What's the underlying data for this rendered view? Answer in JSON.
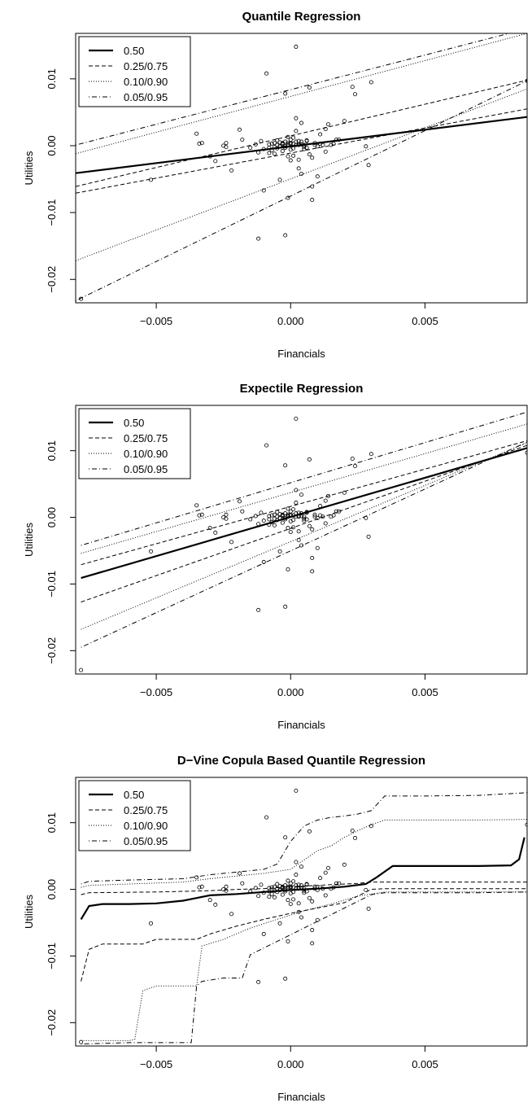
{
  "chart_data": [
    {
      "type": "scatter",
      "title": "Quantile Regression",
      "xlabel": "Financials",
      "ylabel": "Utilities",
      "xlim": [
        -0.008,
        0.0088
      ],
      "ylim": [
        -0.0235,
        0.0168
      ],
      "x_ticks": [
        -0.005,
        0.0,
        0.005
      ],
      "x_tick_labels": [
        "−0.005",
        "0.000",
        "0.005"
      ],
      "y_ticks": [
        -0.02,
        -0.01,
        0.0,
        0.01
      ],
      "y_tick_labels": [
        "−0.02",
        "−0.01",
        "0.00",
        "0.01"
      ],
      "legend": {
        "position": "top-left",
        "entries": [
          {
            "label": "0.50",
            "style": "solid"
          },
          {
            "label": "0.25/0.75",
            "style": "dashed"
          },
          {
            "label": "0.10/0.90",
            "style": "dotted"
          },
          {
            "label": "0.05/0.95",
            "style": "dotdash"
          }
        ]
      },
      "series": [
        {
          "quantile": 0.5,
          "style": "solid",
          "x": [
            -0.008,
            0.0088
          ],
          "y": [
            -0.0041,
            0.0043
          ]
        },
        {
          "quantile": 0.25,
          "style": "dashed",
          "x": [
            -0.008,
            0.0088
          ],
          "y": [
            -0.0071,
            0.0055
          ]
        },
        {
          "quantile": 0.75,
          "style": "dashed",
          "x": [
            -0.008,
            0.0088
          ],
          "y": [
            -0.0061,
            0.0098
          ]
        },
        {
          "quantile": 0.1,
          "style": "dotted",
          "x": [
            -0.008,
            0.0088
          ],
          "y": [
            -0.0172,
            0.0085
          ]
        },
        {
          "quantile": 0.9,
          "style": "dotted",
          "x": [
            -0.008,
            0.0088
          ],
          "y": [
            -0.0012,
            0.0168
          ]
        },
        {
          "quantile": 0.05,
          "style": "dotdash",
          "x": [
            -0.008,
            0.0088
          ],
          "y": [
            -0.0232,
            0.0097
          ]
        },
        {
          "quantile": 0.95,
          "style": "dotdash",
          "x": [
            -0.008,
            0.0088
          ],
          "y": [
            0.0001,
            0.0175
          ]
        }
      ]
    },
    {
      "type": "scatter",
      "title": "Expectile Regression",
      "xlabel": "Financials",
      "ylabel": "Utilities",
      "xlim": [
        -0.008,
        0.0088
      ],
      "ylim": [
        -0.0235,
        0.0168
      ],
      "x_ticks": [
        -0.005,
        0.0,
        0.005
      ],
      "x_tick_labels": [
        "−0.005",
        "0.000",
        "0.005"
      ],
      "y_ticks": [
        -0.02,
        -0.01,
        0.0,
        0.01
      ],
      "y_tick_labels": [
        "−0.02",
        "−0.01",
        "0.00",
        "0.01"
      ],
      "legend": {
        "position": "top-left",
        "entries": [
          {
            "label": "0.50",
            "style": "solid"
          },
          {
            "label": "0.25/0.75",
            "style": "dashed"
          },
          {
            "label": "0.10/0.90",
            "style": "dotted"
          },
          {
            "label": "0.05/0.95",
            "style": "dotdash"
          }
        ]
      },
      "series": [
        {
          "quantile": 0.5,
          "style": "solid",
          "x": [
            -0.0078,
            0.0088
          ],
          "y": [
            -0.0091,
            0.0104
          ]
        },
        {
          "quantile": 0.25,
          "style": "dashed",
          "x": [
            -0.0078,
            0.0088
          ],
          "y": [
            -0.0127,
            0.0108
          ]
        },
        {
          "quantile": 0.75,
          "style": "dashed",
          "x": [
            -0.0078,
            0.0088
          ],
          "y": [
            -0.0071,
            0.0115
          ]
        },
        {
          "quantile": 0.1,
          "style": "dotted",
          "x": [
            -0.0078,
            0.0088
          ],
          "y": [
            -0.0168,
            0.0112
          ]
        },
        {
          "quantile": 0.9,
          "style": "dotted",
          "x": [
            -0.0078,
            0.0088
          ],
          "y": [
            -0.0054,
            0.014
          ]
        },
        {
          "quantile": 0.05,
          "style": "dotdash",
          "x": [
            -0.0078,
            0.0088
          ],
          "y": [
            -0.0195,
            0.0113
          ]
        },
        {
          "quantile": 0.95,
          "style": "dotdash",
          "x": [
            -0.0078,
            0.0088
          ],
          "y": [
            -0.0042,
            0.0158
          ]
        }
      ]
    },
    {
      "type": "scatter",
      "title": "D−Vine Copula Based Quantile Regression",
      "xlabel": "Financials",
      "ylabel": "Utilities",
      "xlim": [
        -0.008,
        0.0088
      ],
      "ylim": [
        -0.0235,
        0.0168
      ],
      "x_ticks": [
        -0.005,
        0.0,
        0.005
      ],
      "x_tick_labels": [
        "−0.005",
        "0.000",
        "0.005"
      ],
      "y_ticks": [
        -0.02,
        -0.01,
        0.0,
        0.01
      ],
      "y_tick_labels": [
        "−0.02",
        "−0.01",
        "0.00",
        "0.01"
      ],
      "legend": {
        "position": "top-left",
        "entries": [
          {
            "label": "0.50",
            "style": "solid"
          },
          {
            "label": "0.25/0.75",
            "style": "dashed"
          },
          {
            "label": "0.10/0.90",
            "style": "dotted"
          },
          {
            "label": "0.05/0.95",
            "style": "dotdash"
          }
        ]
      },
      "series": [
        {
          "quantile": 0.5,
          "style": "solid",
          "x": [
            -0.0078,
            -0.0075,
            -0.007,
            -0.006,
            -0.005,
            -0.004,
            -0.0035,
            -0.003,
            -0.002,
            -0.001,
            0.0,
            0.001,
            0.002,
            0.0028,
            0.0032,
            0.0038,
            0.005,
            0.006,
            0.007,
            0.0082,
            0.0085,
            0.0087
          ],
          "y": [
            -0.0045,
            -0.0025,
            -0.0022,
            -0.0022,
            -0.0021,
            -0.0017,
            -0.0013,
            -0.0009,
            -0.0007,
            -0.0004,
            -0.0001,
            0.0001,
            0.0004,
            0.0008,
            0.0018,
            0.0035,
            0.0035,
            0.0035,
            0.0035,
            0.0036,
            0.0045,
            0.0078
          ]
        },
        {
          "quantile": 0.25,
          "style": "dashed",
          "x": [
            -0.0078,
            -0.0075,
            -0.007,
            -0.006,
            -0.0055,
            -0.005,
            -0.0035,
            -0.003,
            -0.002,
            -0.001,
            0.0,
            0.001,
            0.002,
            0.003,
            0.0035,
            0.005,
            0.007,
            0.0088
          ],
          "y": [
            -0.0138,
            -0.009,
            -0.0082,
            -0.0082,
            -0.0082,
            -0.0075,
            -0.0075,
            -0.0067,
            -0.0055,
            -0.0045,
            -0.0036,
            -0.0028,
            -0.002,
            0.0,
            0.0001,
            0.0001,
            0.0001,
            0.0001
          ]
        },
        {
          "quantile": 0.75,
          "style": "dashed",
          "x": [
            -0.0078,
            -0.0075,
            -0.005,
            -0.003,
            -0.002,
            -0.001,
            0.0,
            0.001,
            0.0015,
            0.002,
            0.0025,
            0.003,
            0.0035,
            0.005,
            0.007,
            0.0088
          ],
          "y": [
            -0.0008,
            -0.0005,
            -0.0004,
            -0.0002,
            0.0,
            0.0001,
            0.0004,
            0.0006,
            0.0007,
            0.0008,
            0.0009,
            0.0011,
            0.0011,
            0.0011,
            0.0011,
            0.0011
          ]
        },
        {
          "quantile": 0.1,
          "style": "dotted",
          "x": [
            -0.0078,
            -0.0065,
            -0.006,
            -0.0058,
            -0.0055,
            -0.005,
            -0.0035,
            -0.0033,
            -0.0025,
            -0.0015,
            -0.0005,
            0.0005,
            0.0015,
            0.0025,
            0.0035,
            0.005,
            0.007,
            0.0088
          ],
          "y": [
            -0.0227,
            -0.0227,
            -0.0227,
            -0.0225,
            -0.0152,
            -0.0145,
            -0.0145,
            -0.0085,
            -0.0075,
            -0.0058,
            -0.0045,
            -0.0032,
            -0.0022,
            -0.001,
            -0.0004,
            -0.0004,
            -0.0004,
            -0.0004
          ]
        },
        {
          "quantile": 0.9,
          "style": "dotted",
          "x": [
            -0.0078,
            -0.0075,
            -0.006,
            -0.004,
            -0.003,
            -0.001,
            0.0,
            0.001,
            0.0015,
            0.002,
            0.0025,
            0.003,
            0.0035,
            0.005,
            0.007,
            0.0088
          ],
          "y": [
            0.0003,
            0.0006,
            0.0008,
            0.0011,
            0.0016,
            0.0024,
            0.003,
            0.0058,
            0.0065,
            0.0078,
            0.0088,
            0.0097,
            0.0104,
            0.0104,
            0.0104,
            0.0105
          ]
        },
        {
          "quantile": 0.05,
          "style": "dotdash",
          "x": [
            -0.0078,
            -0.006,
            -0.0045,
            -0.0037,
            -0.0035,
            -0.0033,
            -0.0025,
            -0.0018,
            -0.0015,
            -0.001,
            -0.0005,
            0.0,
            0.0005,
            0.001,
            0.0015,
            0.002,
            0.0025,
            0.003,
            0.0035,
            0.005,
            0.007,
            0.0088
          ],
          "y": [
            -0.0232,
            -0.023,
            -0.023,
            -0.023,
            -0.0145,
            -0.0138,
            -0.0133,
            -0.0133,
            -0.0098,
            -0.0088,
            -0.0078,
            -0.0068,
            -0.0058,
            -0.0048,
            -0.0038,
            -0.0028,
            -0.0018,
            -0.0008,
            -0.0005,
            -0.0005,
            -0.0005,
            -0.0004
          ]
        },
        {
          "quantile": 0.95,
          "style": "dotdash",
          "x": [
            -0.0078,
            -0.0075,
            -0.006,
            -0.004,
            -0.003,
            -0.001,
            -0.0005,
            0.0,
            0.0005,
            0.001,
            0.0015,
            0.002,
            0.0025,
            0.003,
            0.0035,
            0.005,
            0.007,
            0.0088
          ],
          "y": [
            0.0008,
            0.0012,
            0.0014,
            0.0016,
            0.0022,
            0.003,
            0.0038,
            0.0072,
            0.0095,
            0.0104,
            0.0108,
            0.011,
            0.0113,
            0.0118,
            0.014,
            0.014,
            0.0141,
            0.0145
          ]
        }
      ]
    }
  ],
  "observations": {
    "x": [
      -0.0078,
      -0.0052,
      -0.0035,
      -0.0034,
      -0.0033,
      -0.003,
      -0.0028,
      -0.0025,
      -0.0024,
      -0.0024,
      -0.0022,
      -0.0019,
      -0.0018,
      -0.0015,
      -0.0013,
      -0.0012,
      -0.0011,
      -0.001,
      -0.001,
      -0.0009,
      -0.0008,
      -0.0008,
      -0.0007,
      -0.0007,
      -0.0006,
      -0.0006,
      -0.0006,
      -0.0005,
      -0.0005,
      -0.0005,
      -0.0004,
      -0.0004,
      -0.0004,
      -0.0003,
      -0.0003,
      -0.0003,
      -0.0003,
      -0.0002,
      -0.0002,
      -0.0002,
      -0.0002,
      -0.0001,
      -0.0001,
      -0.0001,
      -0.0001,
      0.0,
      0.0,
      0.0,
      0.0,
      0.0001,
      0.0001,
      0.0001,
      0.0002,
      0.0002,
      0.0002,
      0.0003,
      0.0003,
      0.0003,
      0.0004,
      0.0004,
      0.0004,
      0.0005,
      0.0005,
      0.0006,
      0.0006,
      0.0007,
      0.0008,
      0.0008,
      0.0009,
      0.001,
      0.001,
      0.0011,
      0.0012,
      0.0013,
      0.0013,
      0.0014,
      0.0015,
      0.0016,
      0.0017,
      0.0018,
      0.002,
      0.0023,
      0.0024,
      0.0028,
      0.0029,
      0.003,
      0.0088,
      -0.0012,
      -0.0002,
      0.0002,
      -0.0001,
      -0.0001,
      -0.0008,
      0.0003,
      0.0006,
      0.0007,
      0.0003,
      0.0004,
      0.0002,
      0.0,
      0.0001,
      -0.0004,
      0.0005,
      0.0009,
      0.0008,
      0.0011
    ],
    "y": [
      -0.0229,
      -0.0051,
      0.0018,
      0.0003,
      0.0004,
      -0.0016,
      -0.0023,
      0.0,
      -0.0002,
      0.0004,
      -0.0037,
      0.0024,
      0.0009,
      -0.0003,
      0.0002,
      -0.001,
      0.0007,
      -0.0005,
      -0.0067,
      0.0108,
      -0.0003,
      0.0002,
      -0.0007,
      0.0003,
      -0.0002,
      0.0004,
      -0.0012,
      0.0001,
      -0.0004,
      0.0008,
      -0.0051,
      0.0005,
      -0.0001,
      0.0003,
      -0.0008,
      0.0002,
      0.0004,
      0.0078,
      -0.0001,
      -0.0003,
      0.0006,
      0.0002,
      -0.0016,
      0.0004,
      0.0001,
      -0.0022,
      0.0009,
      -0.0006,
      0.0003,
      0.0003,
      0.0012,
      -0.0004,
      0.0148,
      0.0006,
      0.0041,
      0.0001,
      0.0007,
      -0.0034,
      -0.0042,
      0.0002,
      0.0034,
      -0.0005,
      0.0001,
      0.0007,
      -0.0003,
      0.0087,
      -0.0061,
      -0.0081,
      0.0004,
      -0.0001,
      -0.0046,
      0.0017,
      0.0001,
      -0.0009,
      0.0025,
      0.0032,
      0.0001,
      0.0003,
      0.0009,
      0.0009,
      0.0037,
      0.0088,
      0.0077,
      -0.0001,
      -0.0029,
      0.0095,
      0.0097,
      -0.0139,
      -0.0134,
      0.0022,
      -0.0078,
      0.0013,
      -0.0011,
      0.0002,
      0.0008,
      -0.0013,
      -0.0021,
      0.0006,
      0.0001,
      0.0004,
      -0.0015,
      -0.0001,
      -0.0002,
      0.0001,
      -0.0018,
      0.0003
    ]
  }
}
